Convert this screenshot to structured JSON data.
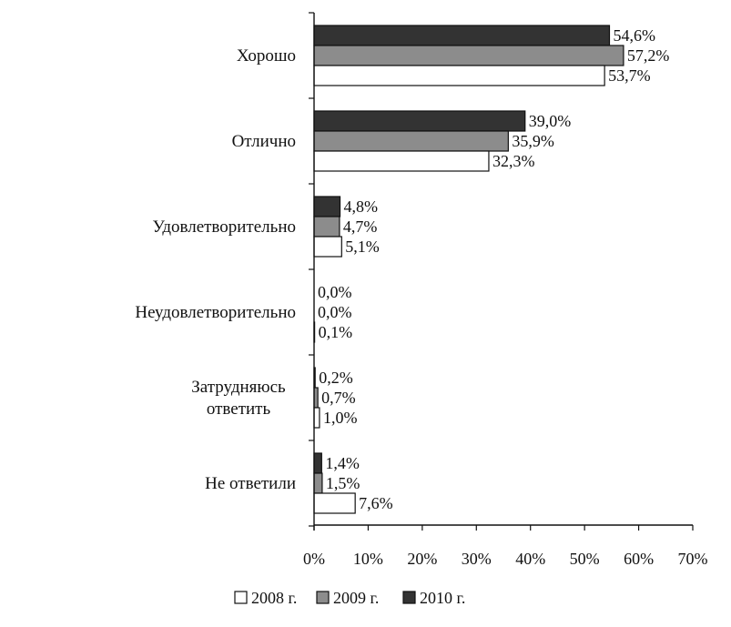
{
  "chart_data": {
    "type": "bar",
    "orientation": "horizontal",
    "categories": [
      [
        "Хорошо"
      ],
      [
        "Отлично"
      ],
      [
        "Удовлетворительно"
      ],
      [
        "Неудовлетворительно"
      ],
      [
        "Затрудняюсь",
        "ответить"
      ],
      [
        "Не ответили"
      ]
    ],
    "series": [
      {
        "name": "2010 г.",
        "color": "#333333",
        "values": [
          54.6,
          39.0,
          4.8,
          0.0,
          0.2,
          1.4
        ],
        "labels": [
          "54,6%",
          "39,0%",
          "4,8%",
          "0,0%",
          "0,2%",
          "1,4%"
        ]
      },
      {
        "name": "2009 г.",
        "color": "#8c8c8c",
        "values": [
          57.2,
          35.9,
          4.7,
          0.0,
          0.7,
          1.5
        ],
        "labels": [
          "57,2%",
          "35,9%",
          "4,7%",
          "0,0%",
          "0,7%",
          "1,5%"
        ]
      },
      {
        "name": "2008 г.",
        "color": "#ffffff",
        "values": [
          53.7,
          32.3,
          5.1,
          0.1,
          1.0,
          7.6
        ],
        "labels": [
          "53,7%",
          "32,3%",
          "5,1%",
          "0,1%",
          "1,0%",
          "7,6%"
        ]
      }
    ],
    "xlim": [
      0,
      70
    ],
    "xticks": [
      0,
      10,
      20,
      30,
      40,
      50,
      60,
      70
    ],
    "xtick_labels": [
      "0%",
      "10%",
      "20%",
      "30%",
      "40%",
      "50%",
      "60%",
      "70%"
    ],
    "grid": false,
    "legend_position": "bottom",
    "legend": [
      {
        "label": "2008 г.",
        "color": "#ffffff"
      },
      {
        "label": "2009 г.",
        "color": "#8c8c8c"
      },
      {
        "label": "2010 г.",
        "color": "#333333"
      }
    ]
  }
}
